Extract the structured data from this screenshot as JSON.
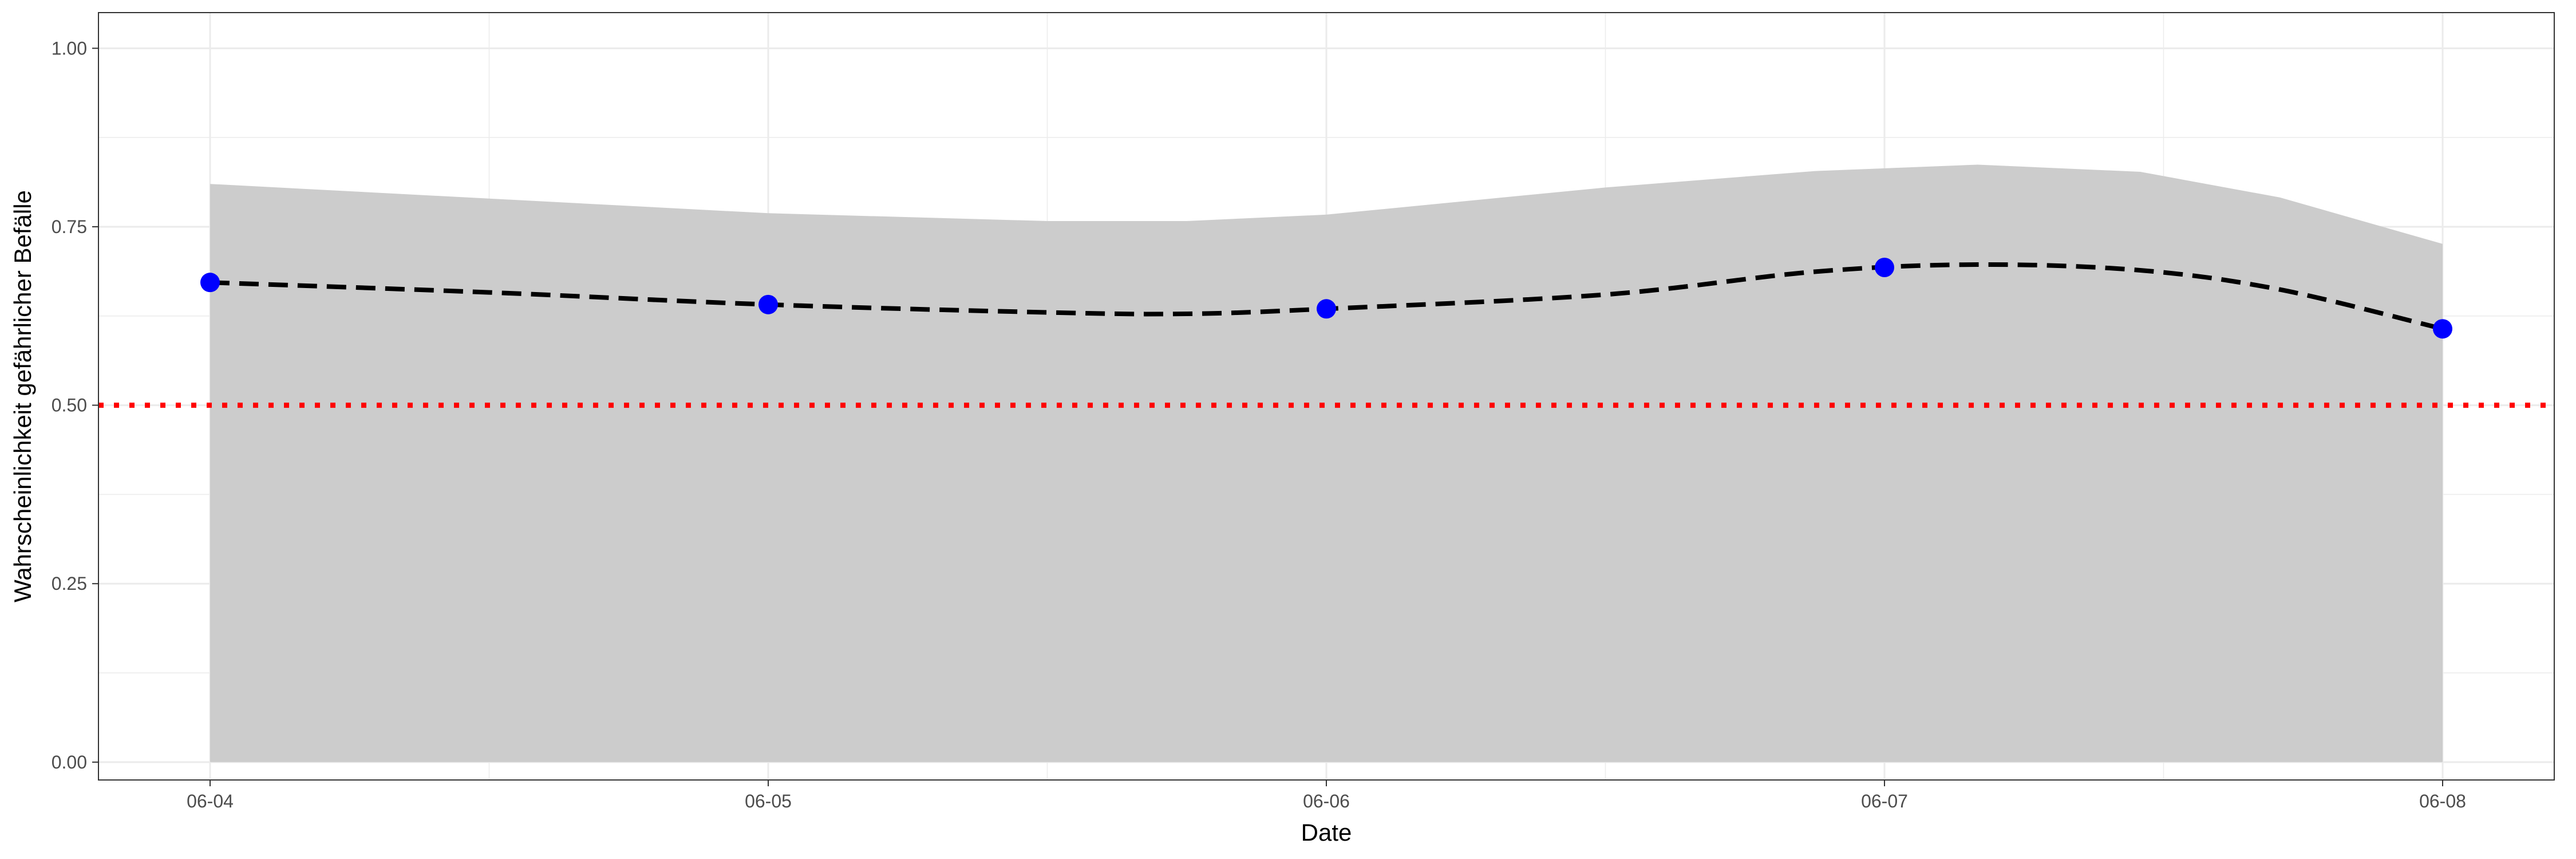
{
  "chart_data": {
    "type": "line",
    "xlabel": "Date",
    "ylabel": "Wahrscheinlichkeit gefährlicher Befälle",
    "x_ticks": [
      "06-04",
      "06-05",
      "06-06",
      "06-07",
      "06-08"
    ],
    "y_ticks": [
      "0.00",
      "0.25",
      "0.50",
      "0.75",
      "1.00"
    ],
    "ylim": [
      -0.025,
      1.05
    ],
    "xlim": [
      "06-03 19:12",
      "06-08 04:48"
    ],
    "grid": true,
    "points": {
      "x": [
        "06-04",
        "06-05",
        "06-06",
        "06-07",
        "06-08"
      ],
      "y": [
        0.672,
        0.641,
        0.635,
        0.693,
        0.607
      ],
      "color": "#0000ff"
    },
    "smooth_line": {
      "x": [
        "06-04",
        "06-04 12:00",
        "06-05",
        "06-05 12:00",
        "06-05 18:00",
        "06-06",
        "06-06 12:00",
        "06-06 21:00",
        "06-07 04:00",
        "06-07 11:00",
        "06-07 17:00",
        "06-08"
      ],
      "y": [
        0.672,
        0.658,
        0.641,
        0.63,
        0.628,
        0.635,
        0.655,
        0.687,
        0.697,
        0.689,
        0.662,
        0.607
      ],
      "style": "dashed",
      "color": "#000000"
    },
    "ribbon": {
      "x": [
        "06-04",
        "06-05",
        "06-05 12:00",
        "06-05 18:00",
        "06-06",
        "06-06 12:00",
        "06-06 21:00",
        "06-07 04:00",
        "06-07 11:00",
        "06-07 17:00",
        "06-08"
      ],
      "upper": [
        0.81,
        0.769,
        0.758,
        0.758,
        0.767,
        0.805,
        0.828,
        0.837,
        0.827,
        0.791,
        0.726
      ],
      "lower": [
        0.0,
        0.0,
        0.0,
        0.0,
        0.0,
        0.0,
        0.0,
        0.0,
        0.0,
        0.0,
        0.0
      ],
      "color": "#cccccc"
    },
    "reference_line": {
      "y": 0.5,
      "style": "dotted",
      "color": "#ff0000"
    }
  }
}
